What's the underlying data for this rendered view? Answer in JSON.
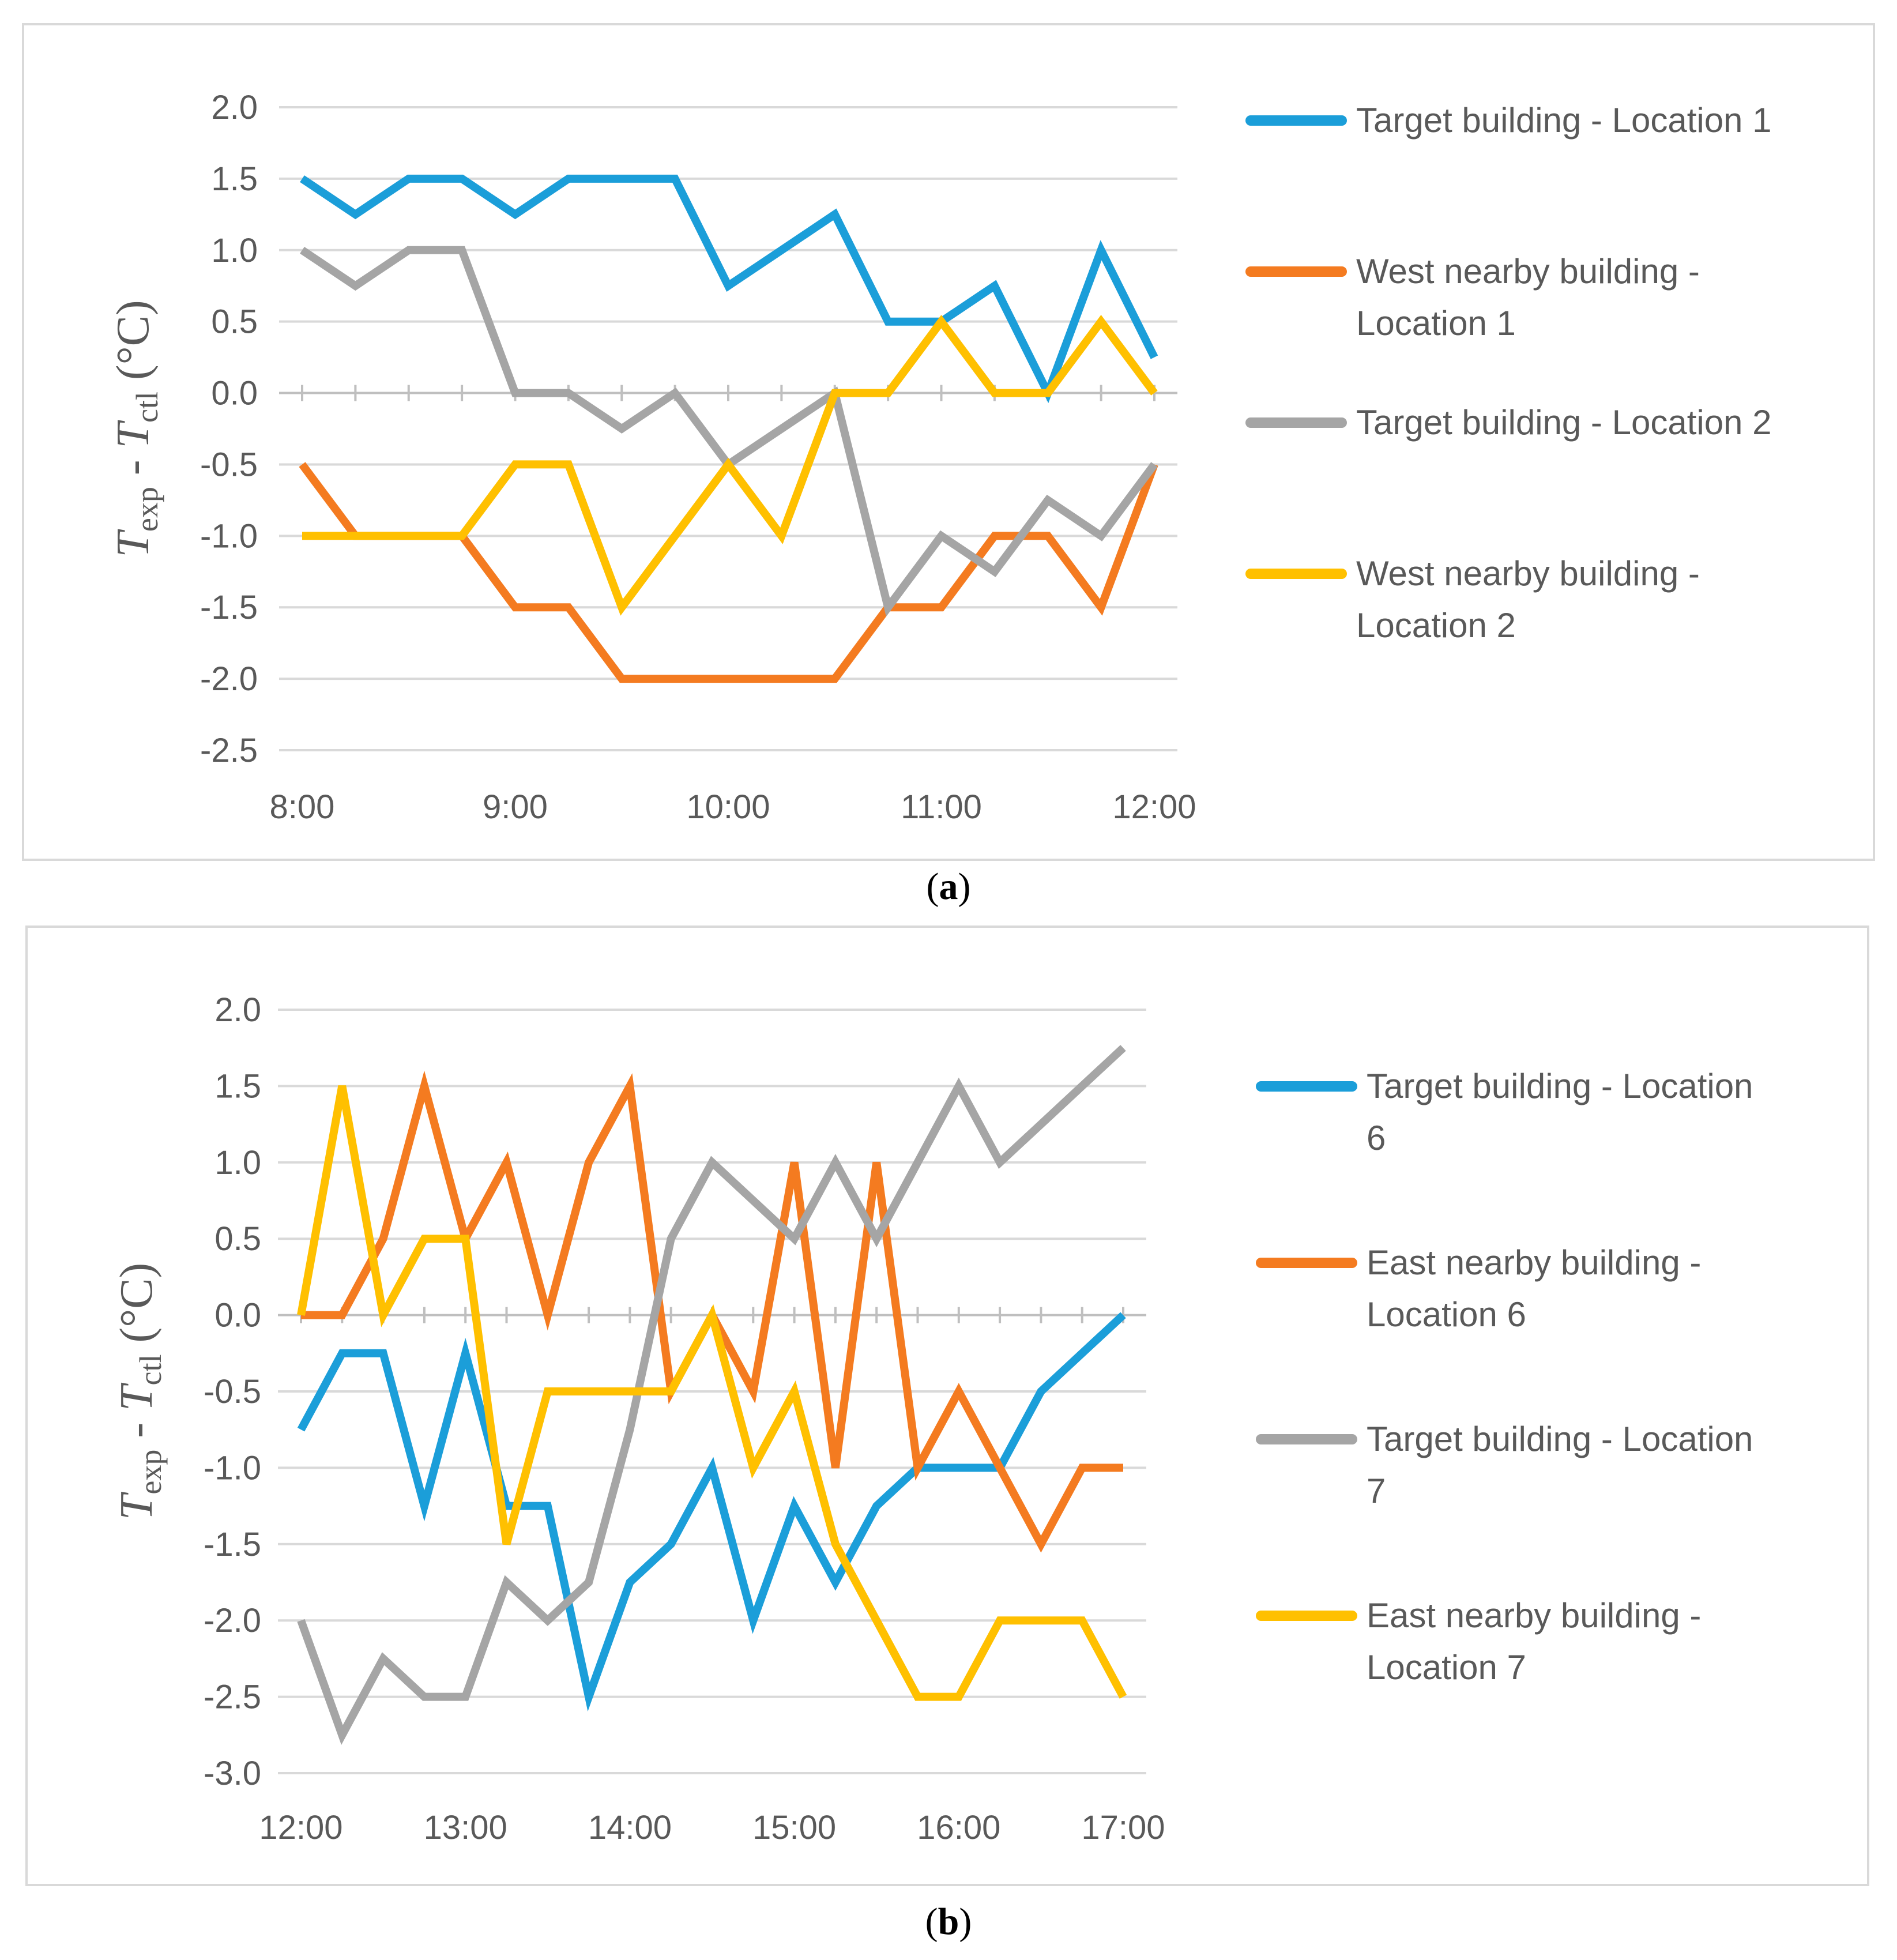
{
  "chart_data": [
    {
      "type": "line",
      "panel_label": "a",
      "title": "",
      "xlabel": "",
      "ylabel": {
        "T1": "T",
        "sub1": "exp",
        "mid": " - ",
        "T2": "T",
        "sub2": "ctl",
        "unit": " (°C)"
      },
      "x": [
        "8:00",
        "8:15",
        "8:30",
        "8:45",
        "9:00",
        "9:15",
        "9:30",
        "9:45",
        "10:00",
        "10:15",
        "10:30",
        "10:45",
        "11:00",
        "11:15",
        "11:30",
        "11:45",
        "12:00"
      ],
      "xticks": [
        "8:00",
        "9:00",
        "10:00",
        "11:00",
        "12:00"
      ],
      "ylim": [
        -2.5,
        2.0
      ],
      "yticks": [
        "2.0",
        "1.5",
        "1.0",
        "0.5",
        "0.0",
        "-0.5",
        "-1.0",
        "-1.5",
        "-2.0",
        "-2.5"
      ],
      "series": [
        {
          "name": "Target building - Location 1",
          "label_lines": [
            "Target building - Location 1"
          ],
          "color": "#1B9ED9",
          "values": [
            1.5,
            1.25,
            1.5,
            1.5,
            1.25,
            1.5,
            1.5,
            1.5,
            0.75,
            1.0,
            1.25,
            0.5,
            0.5,
            0.75,
            0.0,
            1.0,
            0.25
          ]
        },
        {
          "name": "West nearby building - Location 1",
          "label_lines": [
            "West nearby building -",
            "Location 1"
          ],
          "color": "#F47B20",
          "values": [
            -0.5,
            -1.0,
            -1.0,
            -1.0,
            -1.5,
            -1.5,
            -2.0,
            -2.0,
            -2.0,
            -2.0,
            -2.0,
            -1.5,
            -1.5,
            -1.0,
            -1.0,
            -1.5,
            -0.5
          ]
        },
        {
          "name": "Target building - Location 2",
          "label_lines": [
            "Target building - Location 2"
          ],
          "color": "#A5A5A5",
          "values": [
            1.0,
            0.75,
            1.0,
            1.0,
            0.0,
            0.0,
            -0.25,
            0.0,
            -0.5,
            -0.25,
            0.0,
            -1.5,
            -1.0,
            -1.25,
            -0.75,
            -1.0,
            -0.5
          ]
        },
        {
          "name": "West nearby building - Location 2",
          "label_lines": [
            "West nearby building -",
            "Location 2"
          ],
          "color": "#FFC000",
          "values": [
            -1.0,
            -1.0,
            -1.0,
            -1.0,
            -0.5,
            -0.5,
            -1.5,
            -1.0,
            -0.5,
            -1.0,
            0.0,
            0.0,
            0.5,
            0.0,
            0.0,
            0.5,
            0.0
          ]
        }
      ]
    },
    {
      "type": "line",
      "panel_label": "b",
      "title": "",
      "xlabel": "",
      "ylabel": {
        "T1": "T",
        "sub1": "exp",
        "mid": " - ",
        "T2": "T",
        "sub2": "ctl",
        "unit": " (°C)"
      },
      "x": [
        "12:00",
        "12:15",
        "12:30",
        "12:45",
        "13:00",
        "13:15",
        "13:30",
        "13:45",
        "14:00",
        "14:15",
        "14:30",
        "14:45",
        "15:00",
        "15:15",
        "15:30",
        "15:45",
        "16:00",
        "16:15",
        "16:30",
        "16:45",
        "17:00"
      ],
      "xticks": [
        "12:00",
        "13:00",
        "14:00",
        "15:00",
        "16:00",
        "17:00"
      ],
      "ylim": [
        -3.0,
        2.0
      ],
      "yticks": [
        "2.0",
        "1.5",
        "1.0",
        "0.5",
        "0.0",
        "-0.5",
        "-1.0",
        "-1.5",
        "-2.0",
        "-2.5",
        "-3.0"
      ],
      "series": [
        {
          "name": "Target building - Location 6",
          "label_lines": [
            "Target building - Location",
            "6"
          ],
          "color": "#1B9ED9",
          "values": [
            -0.75,
            -0.25,
            -0.25,
            -1.25,
            -0.25,
            -1.25,
            -1.25,
            -2.5,
            -1.75,
            -1.5,
            -1.0,
            -2.0,
            -1.25,
            -1.75,
            -1.25,
            -1.0,
            -1.0,
            -1.0,
            -0.5,
            -0.25,
            0.0
          ]
        },
        {
          "name": "East nearby building - Location 6",
          "label_lines": [
            "East nearby building -",
            "Location 6"
          ],
          "color": "#F47B20",
          "values": [
            0.0,
            0.0,
            0.5,
            1.5,
            0.5,
            1.0,
            0.0,
            1.0,
            1.5,
            -0.5,
            0.0,
            -0.5,
            1.0,
            -1.0,
            1.0,
            -1.0,
            -0.5,
            -1.0,
            -1.5,
            -1.0,
            -1.0
          ]
        },
        {
          "name": "Target building - Location 7",
          "label_lines": [
            "Target building - Location",
            "7"
          ],
          "color": "#A5A5A5",
          "values": [
            -2.0,
            -2.75,
            -2.25,
            -2.5,
            -2.5,
            -1.75,
            -2.0,
            -1.75,
            -0.75,
            0.5,
            1.0,
            0.75,
            0.5,
            1.0,
            0.5,
            1.0,
            1.5,
            1.0,
            1.25,
            1.5,
            1.75
          ]
        },
        {
          "name": "East nearby building - Location 7",
          "label_lines": [
            "East nearby building -",
            "Location 7"
          ],
          "color": "#FFC000",
          "values": [
            0.0,
            1.5,
            0.0,
            0.5,
            0.5,
            -1.5,
            -0.5,
            -0.5,
            -0.5,
            -0.5,
            0.0,
            -1.0,
            -0.5,
            -1.5,
            -2.0,
            -2.5,
            -2.5,
            -2.0,
            -2.0,
            -2.0,
            -2.5
          ]
        }
      ]
    }
  ]
}
